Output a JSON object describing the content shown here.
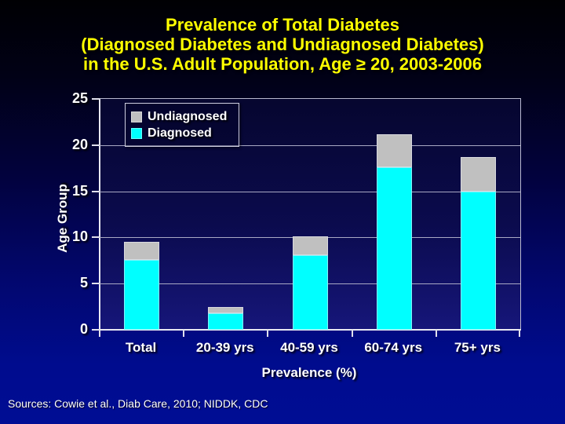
{
  "slide": {
    "sources_text": "Sources: Cowie et al., Diab Care, 2010; NIDDK, CDC"
  },
  "chart_data": {
    "type": "bar",
    "subtype": "stacked-vertical",
    "title_lines": [
      "Prevalence of Total Diabetes",
      "(Diagnosed Diabetes and Undiagnosed Diabetes)",
      "in the U.S. Adult Population, Age ≥ 20, 2003-2006"
    ],
    "title_color": "#ffff00",
    "categories": [
      "Total",
      "20-39 yrs",
      "40-59 yrs",
      "60-74 yrs",
      "75+ yrs"
    ],
    "series": [
      {
        "name": "Diagnosed",
        "color": "#00ffff",
        "values": [
          7.6,
          1.8,
          8.1,
          17.6,
          15.0
        ]
      },
      {
        "name": "Undiagnosed",
        "color": "#c0c0c0",
        "values": [
          1.9,
          0.7,
          2.0,
          3.6,
          3.7
        ]
      }
    ],
    "stacked_totals": [
      9.5,
      2.5,
      10.1,
      21.2,
      18.7
    ],
    "xlabel": "Prevalence (%)",
    "ylabel": "Age Group",
    "ylim": [
      0,
      25
    ],
    "yticks": [
      0,
      5,
      10,
      15,
      20,
      25
    ],
    "grid": "horizontal",
    "legend_position": "top-left",
    "legend_order": [
      "Undiagnosed",
      "Diagnosed"
    ],
    "tick_label_color": "#ffffff",
    "plot_bg_top": "#06062f",
    "plot_bg_bottom": "#16167a",
    "slide_bg_top": "#000003",
    "slide_bg_bottom": "#000d94"
  }
}
